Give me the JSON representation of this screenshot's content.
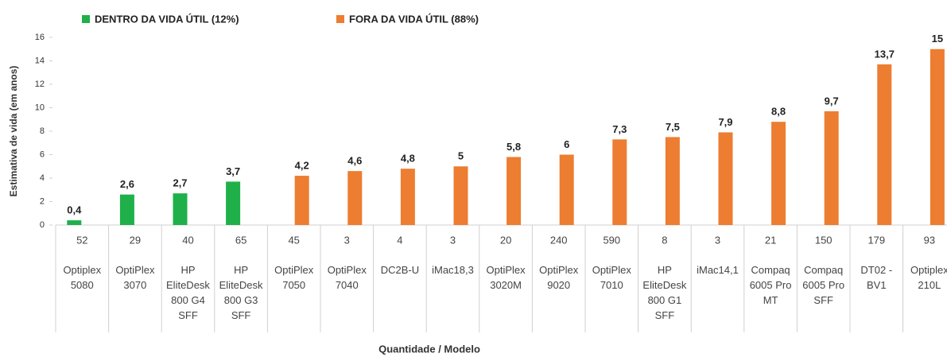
{
  "chart_data": {
    "type": "bar",
    "y_label": "Estimativa de vida (em anos)",
    "x_label": "Quantidade / Modelo",
    "quantities": [
      "52",
      "29",
      "40",
      "65",
      "45",
      "3",
      "4",
      "3",
      "20",
      "240",
      "590",
      "8",
      "3",
      "21",
      "150",
      "179",
      "93"
    ],
    "categories": [
      "Optiplex 5080",
      "OptiPlex 3070",
      "HP EliteDesk 800 G4 SFF",
      "HP EliteDesk 800 G3 SFF",
      "OptiPlex 7050",
      "OptiPlex 7040",
      "DC2B-U",
      "iMac18,3",
      "OptiPlex 3020M",
      "OptiPlex 9020",
      "OptiPlex 7010",
      "HP EliteDesk 800 G1 SFF",
      "iMac14,1",
      "Compaq 6005 Pro MT",
      "Compaq 6005 Pro SFF",
      "DT02 - BV1",
      "Optiplex 210L"
    ],
    "series": [
      {
        "name": "DENTRO DA VIDA ÚTIL (12%)",
        "color": "#1fb04a",
        "values": [
          0.4,
          2.6,
          2.7,
          3.7,
          null,
          null,
          null,
          null,
          null,
          null,
          null,
          null,
          null,
          null,
          null,
          null,
          null
        ],
        "value_labels": [
          "0,4",
          "2,6",
          "2,7",
          "3,7",
          null,
          null,
          null,
          null,
          null,
          null,
          null,
          null,
          null,
          null,
          null,
          null,
          null
        ]
      },
      {
        "name": "FORA DA VIDA ÚTIL (88%)",
        "color": "#ed7d31",
        "values": [
          null,
          null,
          null,
          null,
          4.2,
          4.6,
          4.8,
          5,
          5.8,
          6,
          7.3,
          7.5,
          7.9,
          8.8,
          9.7,
          13.7,
          15
        ],
        "value_labels": [
          null,
          null,
          null,
          null,
          "4,2",
          "4,6",
          "4,8",
          "5",
          "5,8",
          "6",
          "7,3",
          "7,5",
          "7,9",
          "8,8",
          "9,7",
          "13,7",
          "15"
        ]
      }
    ],
    "ylim": [
      0,
      16
    ],
    "yticks": [
      0,
      2,
      4,
      6,
      8,
      10,
      12,
      14,
      16
    ],
    "grid": false,
    "legend": "top"
  }
}
